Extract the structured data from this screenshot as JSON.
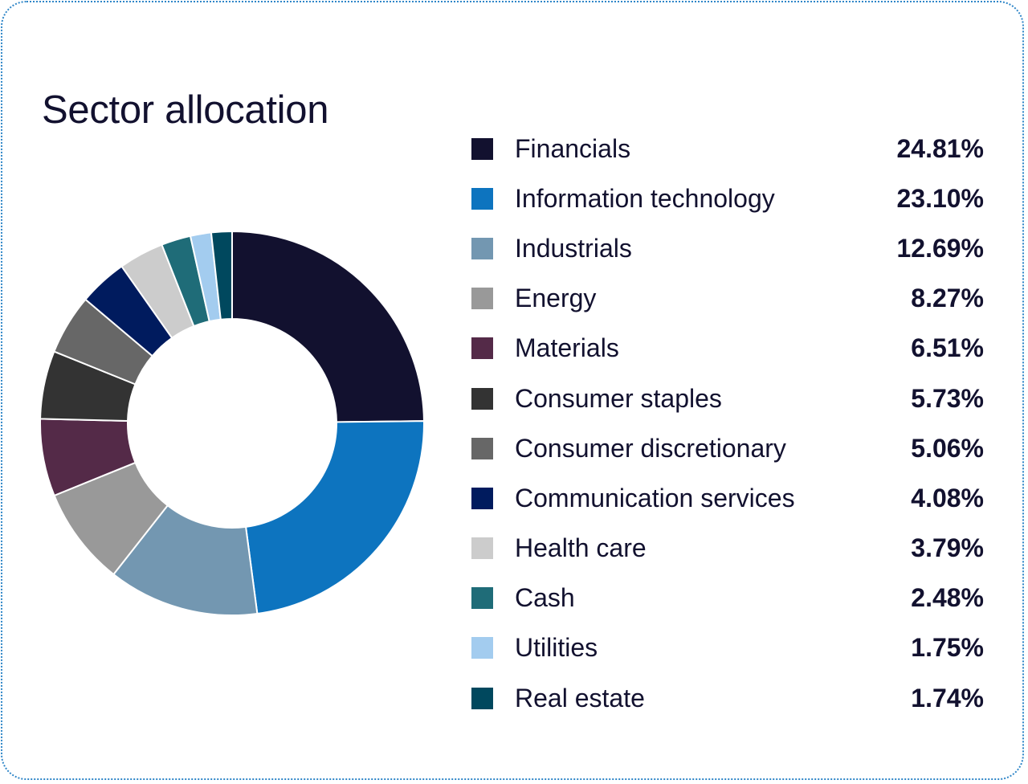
{
  "chart_data": {
    "type": "pie",
    "title": "Sector allocation",
    "unit": "%",
    "categories": [
      "Financials",
      "Information technology",
      "Industrials",
      "Energy",
      "Materials",
      "Consumer staples",
      "Consumer discretionary",
      "Communication services",
      "Health care",
      "Cash",
      "Utilities",
      "Real estate"
    ],
    "values": [
      24.81,
      23.1,
      12.69,
      8.27,
      6.51,
      5.73,
      5.06,
      4.08,
      3.79,
      2.48,
      1.75,
      1.74
    ],
    "value_labels": [
      "24.81%",
      "23.10%",
      "12.69%",
      "8.27%",
      "6.51%",
      "5.73%",
      "5.06%",
      "4.08%",
      "3.79%",
      "2.48%",
      "1.75%",
      "1.74%"
    ],
    "colors": [
      "#12112f",
      "#0d74bf",
      "#7397b1",
      "#999999",
      "#542a48",
      "#333333",
      "#676767",
      "#001b5e",
      "#cccccc",
      "#1f6c78",
      "#a3ccef",
      "#00485e"
    ],
    "donut": true,
    "legend_placement": "right"
  }
}
